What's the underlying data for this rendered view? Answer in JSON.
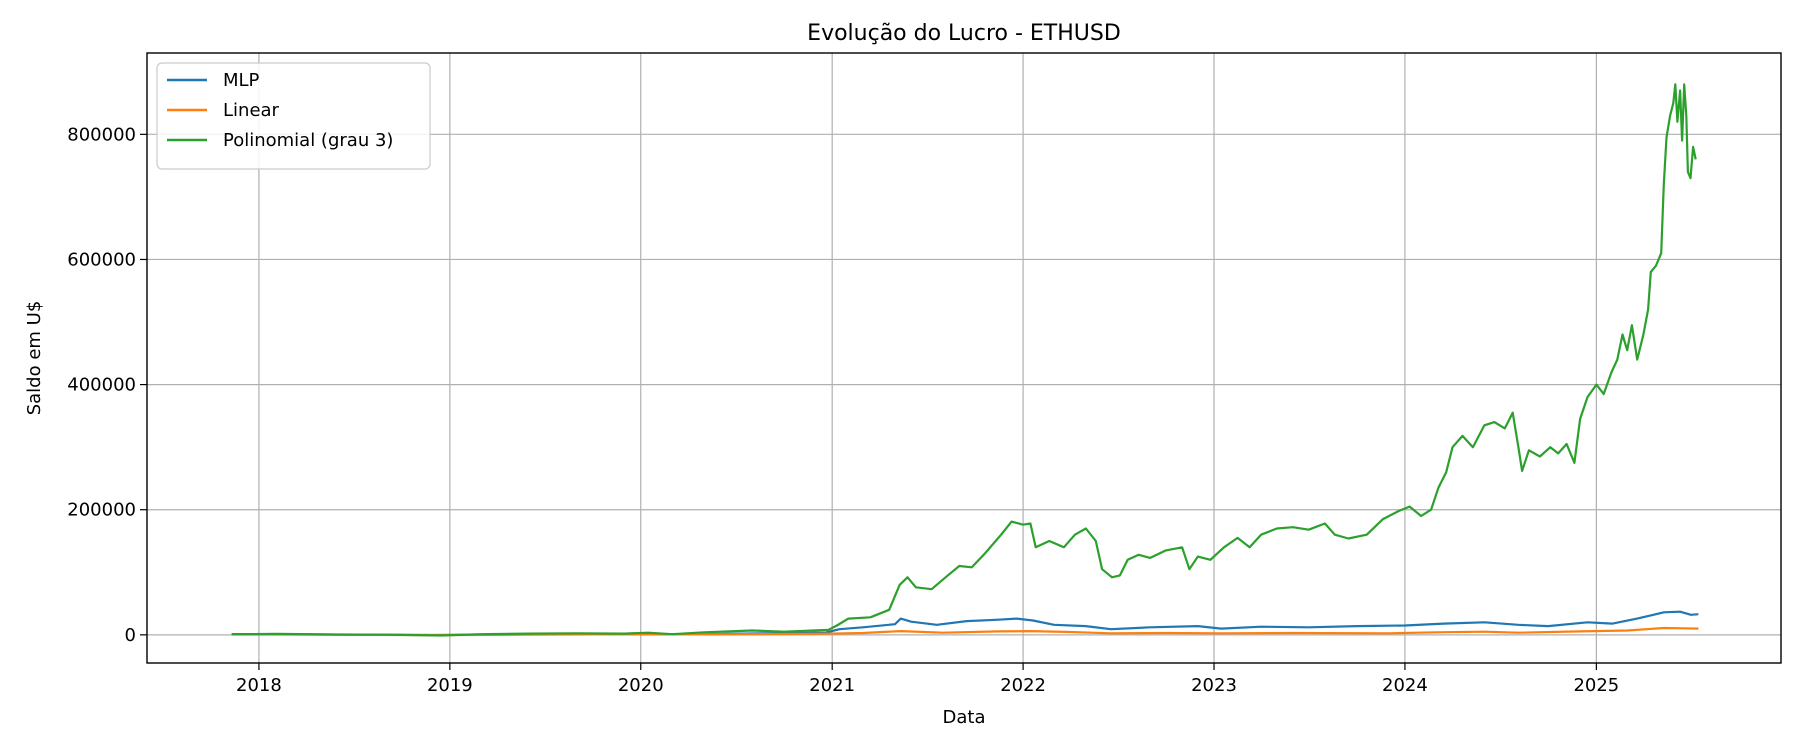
{
  "chart_data": {
    "type": "line",
    "title": "Evolução do Lucro - ETHUSD",
    "xlabel": "Data",
    "ylabel": "Saldo em U$",
    "xlim": [
      "2017-06-01",
      "2025-12-20"
    ],
    "ylim": [
      -45000,
      930000
    ],
    "x_ticks": [
      "2018-01-01",
      "2019-01-01",
      "2020-01-01",
      "2021-01-01",
      "2022-01-01",
      "2023-01-01",
      "2024-01-01",
      "2025-01-01"
    ],
    "x_tick_labels": [
      "2018",
      "2019",
      "2020",
      "2021",
      "2022",
      "2023",
      "2024",
      "2025"
    ],
    "y_ticks": [
      0,
      200000,
      400000,
      600000,
      800000
    ],
    "y_tick_labels": [
      "0",
      "200000",
      "400000",
      "600000",
      "800000"
    ],
    "grid": true,
    "legend_position": "top-left",
    "series": [
      {
        "name": "MLP",
        "color": "#1f77b4",
        "points": [
          [
            "2017-11-10",
            1000
          ],
          [
            "2018-03-01",
            800
          ],
          [
            "2018-06-01",
            400
          ],
          [
            "2018-12-01",
            -200
          ],
          [
            "2019-06-01",
            700
          ],
          [
            "2019-12-01",
            1000
          ],
          [
            "2020-03-01",
            800
          ],
          [
            "2020-06-01",
            1500
          ],
          [
            "2020-09-01",
            2500
          ],
          [
            "2020-12-20",
            3800
          ],
          [
            "2021-01-15",
            9000
          ],
          [
            "2021-03-01",
            12000
          ],
          [
            "2021-05-01",
            17000
          ],
          [
            "2021-05-12",
            26000
          ],
          [
            "2021-06-01",
            21000
          ],
          [
            "2021-07-20",
            16000
          ],
          [
            "2021-09-15",
            22000
          ],
          [
            "2021-11-10",
            24000
          ],
          [
            "2021-12-20",
            26000
          ],
          [
            "2022-01-20",
            23000
          ],
          [
            "2022-03-01",
            16000
          ],
          [
            "2022-05-01",
            14000
          ],
          [
            "2022-06-18",
            9000
          ],
          [
            "2022-09-01",
            12000
          ],
          [
            "2022-12-01",
            14000
          ],
          [
            "2023-01-15",
            10000
          ],
          [
            "2023-04-01",
            13000
          ],
          [
            "2023-07-01",
            12000
          ],
          [
            "2023-10-01",
            14000
          ],
          [
            "2024-01-01",
            15000
          ],
          [
            "2024-03-15",
            18000
          ],
          [
            "2024-06-01",
            20000
          ],
          [
            "2024-08-05",
            16000
          ],
          [
            "2024-10-01",
            14000
          ],
          [
            "2024-12-15",
            20000
          ],
          [
            "2025-02-01",
            18000
          ],
          [
            "2025-03-20",
            26000
          ],
          [
            "2025-05-10",
            36000
          ],
          [
            "2025-06-10",
            37000
          ],
          [
            "2025-07-01",
            32000
          ],
          [
            "2025-07-15",
            33000
          ]
        ]
      },
      {
        "name": "Linear",
        "color": "#ff7f0e",
        "points": [
          [
            "2017-11-10",
            500
          ],
          [
            "2018-06-01",
            200
          ],
          [
            "2018-12-01",
            -500
          ],
          [
            "2019-06-01",
            400
          ],
          [
            "2019-12-01",
            800
          ],
          [
            "2020-06-01",
            700
          ],
          [
            "2020-12-20",
            1800
          ],
          [
            "2021-03-01",
            3000
          ],
          [
            "2021-05-12",
            6000
          ],
          [
            "2021-08-01",
            3500
          ],
          [
            "2021-11-15",
            5500
          ],
          [
            "2022-01-15",
            6000
          ],
          [
            "2022-04-01",
            4500
          ],
          [
            "2022-06-18",
            2500
          ],
          [
            "2022-10-01",
            3000
          ],
          [
            "2023-01-15",
            2500
          ],
          [
            "2023-06-01",
            3000
          ],
          [
            "2023-12-01",
            2500
          ],
          [
            "2024-03-01",
            4000
          ],
          [
            "2024-06-01",
            5000
          ],
          [
            "2024-08-05",
            3500
          ],
          [
            "2024-12-01",
            5500
          ],
          [
            "2025-03-01",
            7000
          ],
          [
            "2025-05-10",
            11000
          ],
          [
            "2025-06-15",
            10500
          ],
          [
            "2025-07-15",
            10000
          ]
        ]
      },
      {
        "name": "Polinomial (grau 3)",
        "color": "#2ca02c",
        "points": [
          [
            "2017-11-10",
            1000
          ],
          [
            "2018-02-01",
            1500
          ],
          [
            "2018-06-01",
            500
          ],
          [
            "2018-09-01",
            200
          ],
          [
            "2018-12-15",
            -1000
          ],
          [
            "2019-03-01",
            1000
          ],
          [
            "2019-06-01",
            2000
          ],
          [
            "2019-09-01",
            2500
          ],
          [
            "2019-12-01",
            2000
          ],
          [
            "2020-01-15",
            3500
          ],
          [
            "2020-03-01",
            1000
          ],
          [
            "2020-05-01",
            4000
          ],
          [
            "2020-08-01",
            7000
          ],
          [
            "2020-10-01",
            5000
          ],
          [
            "2020-12-25",
            8000
          ],
          [
            "2021-01-10",
            15000
          ],
          [
            "2021-02-01",
            26000
          ],
          [
            "2021-03-15",
            28000
          ],
          [
            "2021-04-20",
            40000
          ],
          [
            "2021-05-10",
            80000
          ],
          [
            "2021-05-25",
            92000
          ],
          [
            "2021-06-10",
            76000
          ],
          [
            "2021-07-10",
            73000
          ],
          [
            "2021-08-10",
            95000
          ],
          [
            "2021-09-01",
            110000
          ],
          [
            "2021-09-25",
            108000
          ],
          [
            "2021-10-20",
            130000
          ],
          [
            "2021-11-20",
            160000
          ],
          [
            "2021-12-10",
            181000
          ],
          [
            "2022-01-01",
            176000
          ],
          [
            "2022-01-15",
            178000
          ],
          [
            "2022-01-25",
            140000
          ],
          [
            "2022-02-20",
            150000
          ],
          [
            "2022-03-20",
            140000
          ],
          [
            "2022-04-10",
            160000
          ],
          [
            "2022-05-01",
            170000
          ],
          [
            "2022-05-20",
            150000
          ],
          [
            "2022-06-01",
            105000
          ],
          [
            "2022-06-20",
            92000
          ],
          [
            "2022-07-05",
            95000
          ],
          [
            "2022-07-20",
            120000
          ],
          [
            "2022-08-10",
            128000
          ],
          [
            "2022-09-01",
            123000
          ],
          [
            "2022-10-01",
            135000
          ],
          [
            "2022-11-01",
            140000
          ],
          [
            "2022-11-15",
            105000
          ],
          [
            "2022-12-01",
            125000
          ],
          [
            "2022-12-25",
            120000
          ],
          [
            "2023-01-20",
            140000
          ],
          [
            "2023-02-15",
            155000
          ],
          [
            "2023-03-10",
            140000
          ],
          [
            "2023-04-01",
            160000
          ],
          [
            "2023-05-01",
            170000
          ],
          [
            "2023-06-01",
            172000
          ],
          [
            "2023-07-01",
            168000
          ],
          [
            "2023-08-01",
            178000
          ],
          [
            "2023-08-20",
            160000
          ],
          [
            "2023-09-15",
            154000
          ],
          [
            "2023-10-20",
            160000
          ],
          [
            "2023-11-20",
            185000
          ],
          [
            "2023-12-20",
            198000
          ],
          [
            "2024-01-10",
            205000
          ],
          [
            "2024-02-01",
            190000
          ],
          [
            "2024-02-20",
            200000
          ],
          [
            "2024-03-05",
            235000
          ],
          [
            "2024-03-20",
            260000
          ],
          [
            "2024-04-01",
            300000
          ],
          [
            "2024-04-20",
            318000
          ],
          [
            "2024-05-10",
            300000
          ],
          [
            "2024-06-01",
            335000
          ],
          [
            "2024-06-20",
            340000
          ],
          [
            "2024-07-10",
            330000
          ],
          [
            "2024-07-25",
            355000
          ],
          [
            "2024-08-05",
            300000
          ],
          [
            "2024-08-12",
            262000
          ],
          [
            "2024-08-25",
            295000
          ],
          [
            "2024-09-15",
            285000
          ],
          [
            "2024-10-05",
            300000
          ],
          [
            "2024-10-20",
            290000
          ],
          [
            "2024-11-05",
            305000
          ],
          [
            "2024-11-20",
            275000
          ],
          [
            "2024-12-01",
            345000
          ],
          [
            "2024-12-15",
            380000
          ],
          [
            "2025-01-01",
            400000
          ],
          [
            "2025-01-15",
            385000
          ],
          [
            "2025-01-30",
            420000
          ],
          [
            "2025-02-10",
            440000
          ],
          [
            "2025-02-20",
            480000
          ],
          [
            "2025-03-01",
            455000
          ],
          [
            "2025-03-10",
            495000
          ],
          [
            "2025-03-20",
            440000
          ],
          [
            "2025-04-01",
            480000
          ],
          [
            "2025-04-10",
            520000
          ],
          [
            "2025-04-15",
            580000
          ],
          [
            "2025-04-25",
            590000
          ],
          [
            "2025-05-05",
            610000
          ],
          [
            "2025-05-10",
            720000
          ],
          [
            "2025-05-15",
            795000
          ],
          [
            "2025-05-22",
            830000
          ],
          [
            "2025-05-28",
            850000
          ],
          [
            "2025-06-01",
            880000
          ],
          [
            "2025-06-05",
            820000
          ],
          [
            "2025-06-10",
            870000
          ],
          [
            "2025-06-14",
            790000
          ],
          [
            "2025-06-18",
            880000
          ],
          [
            "2025-06-22",
            830000
          ],
          [
            "2025-06-25",
            740000
          ],
          [
            "2025-06-30",
            730000
          ],
          [
            "2025-07-05",
            780000
          ],
          [
            "2025-07-10",
            760000
          ]
        ]
      }
    ]
  }
}
